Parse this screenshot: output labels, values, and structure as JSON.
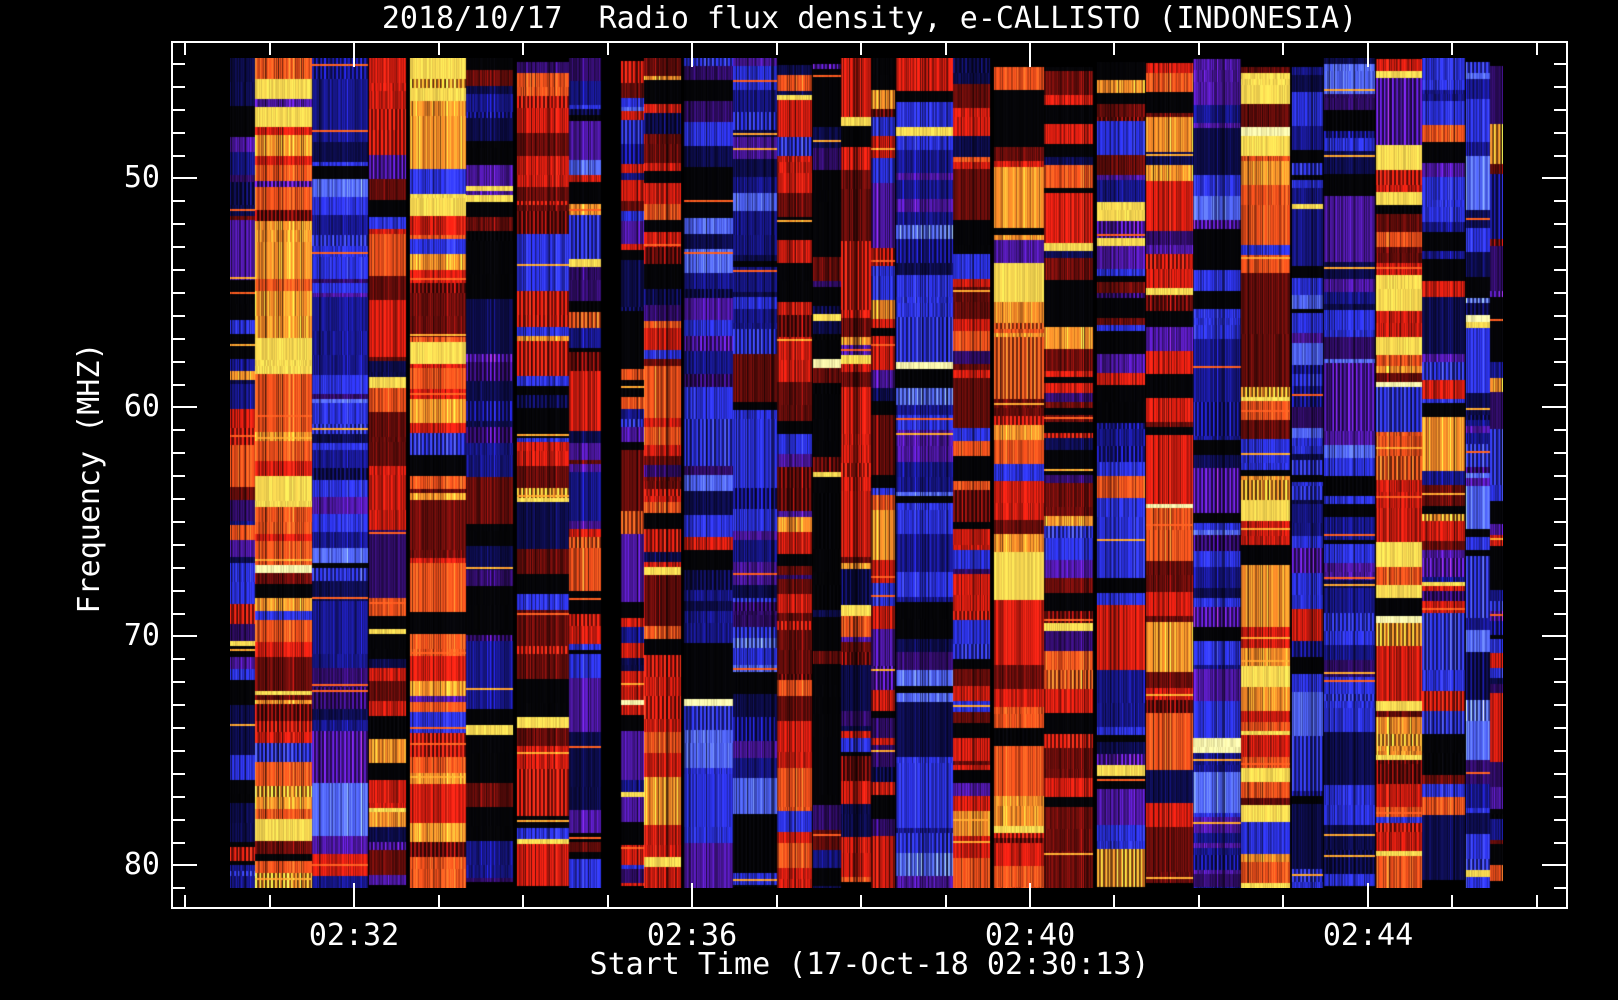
{
  "colors": {
    "background": "#000000",
    "frame": "#ffffff",
    "text": "#ffffff"
  },
  "chart_data": {
    "type": "heatmap",
    "subtype": "radio-spectrogram",
    "title": "2018/10/17  Radio flux density, e-CALLISTO (INDONESIA)",
    "xlabel": "Start Time (17-Oct-18 02:30:13)",
    "ylabel": "Frequency (MHZ)",
    "date": "2018/10/17",
    "instrument": "e-CALLISTO",
    "station": "INDONESIA",
    "start_time": "17-Oct-18 02:30:13",
    "grid": false,
    "legend": false,
    "value_encoding": "flux density encoded as color: black/blue (low) -> purple/red -> orange/yellow (high)",
    "x_axis": {
      "unit": "UT time, minutes after 02:00",
      "domain_minutes": [
        29.83,
        46.37
      ],
      "major_ticks": [
        {
          "minute": 32,
          "label": "02:32"
        },
        {
          "minute": 36,
          "label": "02:36"
        },
        {
          "minute": 40,
          "label": "02:40"
        },
        {
          "minute": 44,
          "label": "02:44"
        }
      ],
      "minor_tick_minutes": [
        30,
        31,
        33,
        34,
        35,
        37,
        38,
        39,
        41,
        42,
        43,
        45,
        46
      ]
    },
    "y_axis": {
      "unit": "MHz",
      "direction": "increasing downward",
      "domain_mhz": [
        44.0,
        81.9
      ],
      "major_ticks": [
        {
          "value": 50,
          "label": "50"
        },
        {
          "value": 60,
          "label": "60"
        },
        {
          "value": 70,
          "label": "70"
        },
        {
          "value": 80,
          "label": "80"
        }
      ],
      "minor_tick_values": [
        45,
        46,
        47,
        48,
        49,
        51,
        52,
        53,
        54,
        55,
        56,
        57,
        58,
        59,
        61,
        62,
        63,
        64,
        65,
        66,
        67,
        68,
        69,
        71,
        72,
        73,
        74,
        75,
        76,
        77,
        78,
        79,
        81
      ]
    },
    "palette": {
      "black": [
        5,
        5,
        8
      ],
      "navy": [
        12,
        12,
        72
      ],
      "dblue": [
        22,
        22,
        132
      ],
      "blue": [
        42,
        48,
        218
      ],
      "bblue": [
        80,
        100,
        255
      ],
      "purple": [
        72,
        22,
        152
      ],
      "dpurple": [
        46,
        12,
        98
      ],
      "dred": [
        98,
        12,
        10
      ],
      "red": [
        205,
        28,
        16
      ],
      "bred": [
        242,
        80,
        28
      ],
      "orange": [
        255,
        142,
        42
      ],
      "yellow": [
        255,
        222,
        84
      ],
      "cream": [
        255,
        250,
        175
      ]
    },
    "pattern": {
      "seed": 20181017,
      "column_width_range": [
        22,
        58
      ],
      "column_gap_chance": 0.5,
      "column_gap_range": [
        1,
        5
      ],
      "wide_gap_chance": 0.05,
      "wide_gap_range": [
        10,
        28
      ],
      "band_height_range": [
        4,
        26
      ],
      "tall_band_chance": 0.12,
      "tall_band_range": [
        30,
        70
      ],
      "top_jitter": 10,
      "bottom_jitter": 9,
      "yellow_band_chance": 0.028,
      "cream_band_chance": 0.008,
      "hot_line_chance": 0.12,
      "dotted_band_chance": 0.15,
      "mood_weights": {
        "blue": 34,
        "red": 26,
        "mixed": 18,
        "dark": 12,
        "hot": 10
      },
      "band_weights": {
        "blue": {
          "dblue": 22,
          "blue": 26,
          "bblue": 10,
          "navy": 14,
          "purple": 8,
          "dpurple": 6,
          "black": 10,
          "red": 3,
          "dred": 1
        },
        "red": {
          "red": 26,
          "dred": 20,
          "bred": 10,
          "orange": 6,
          "purple": 6,
          "dpurple": 4,
          "black": 14,
          "blue": 8,
          "navy": 6
        },
        "mixed": {
          "blue": 16,
          "dblue": 10,
          "red": 14,
          "dred": 8,
          "purple": 12,
          "dpurple": 8,
          "black": 16,
          "navy": 8,
          "bred": 4,
          "orange": 2,
          "bblue": 2
        },
        "dark": {
          "black": 46,
          "navy": 16,
          "dpurple": 12,
          "dred": 10,
          "dblue": 10,
          "purple": 6
        },
        "hot": {
          "orange": 18,
          "bred": 20,
          "red": 22,
          "yellow": 10,
          "dred": 12,
          "black": 8,
          "purple": 4,
          "blue": 6
        }
      }
    }
  }
}
